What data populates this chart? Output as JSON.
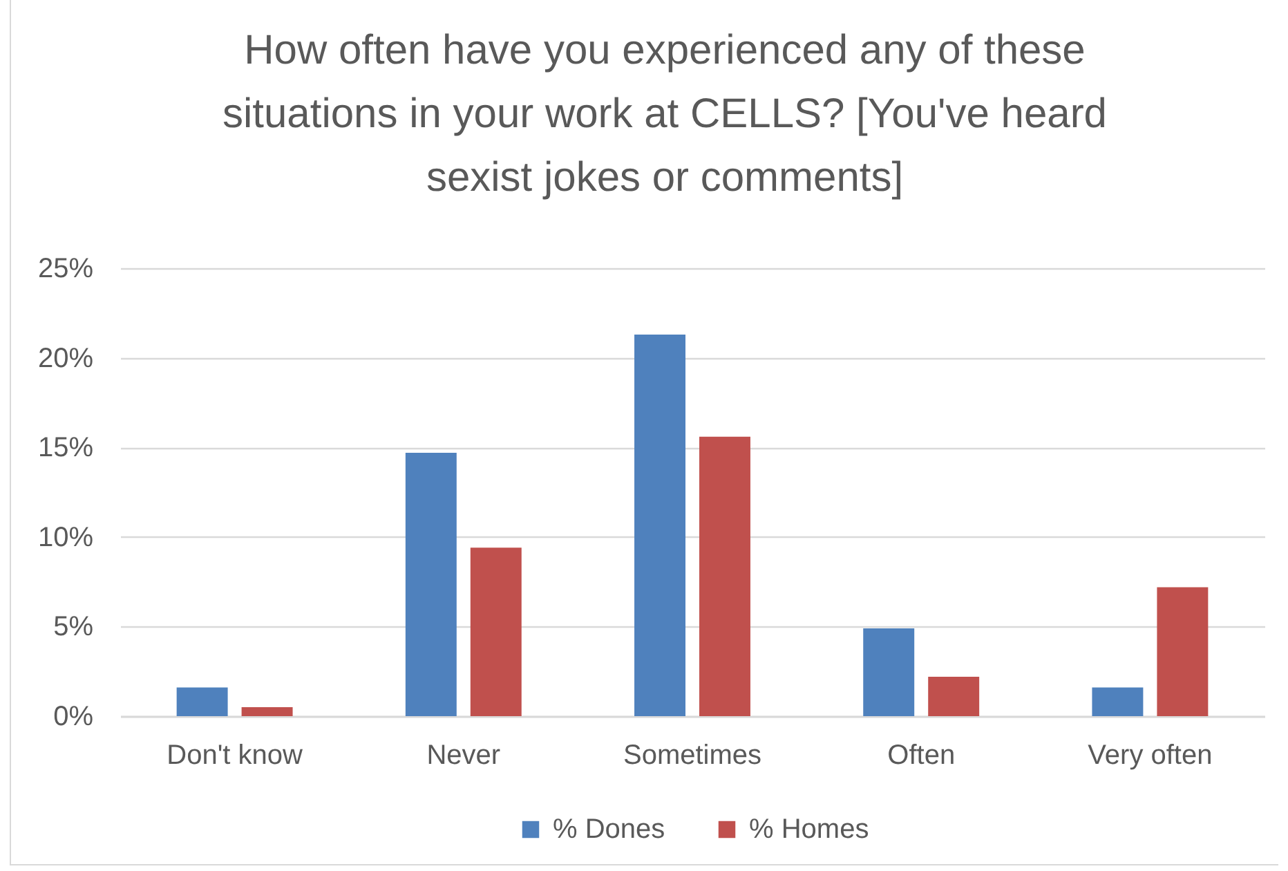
{
  "chart_data": {
    "type": "bar",
    "title": "How often have you experienced any of these situations in your work at CELLS? [You've heard sexist jokes or comments]",
    "categories": [
      "Don't know",
      "Never",
      "Sometimes",
      "Often",
      "Very often"
    ],
    "series": [
      {
        "name": "% Dones",
        "color": "#4f81bd",
        "values": [
          1.6,
          14.7,
          21.3,
          4.9,
          1.6
        ]
      },
      {
        "name": "% Homes",
        "color": "#c0504d",
        "values": [
          0.5,
          9.4,
          15.6,
          2.2,
          7.2
        ]
      }
    ],
    "ylim": [
      0,
      25
    ],
    "yticks": [
      {
        "value": 0,
        "label": "0%"
      },
      {
        "value": 5,
        "label": "5%"
      },
      {
        "value": 10,
        "label": "10%"
      },
      {
        "value": 15,
        "label": "15%"
      },
      {
        "value": 20,
        "label": "20%"
      },
      {
        "value": 25,
        "label": "25%"
      }
    ],
    "grid": "y",
    "legend": "bottom"
  }
}
